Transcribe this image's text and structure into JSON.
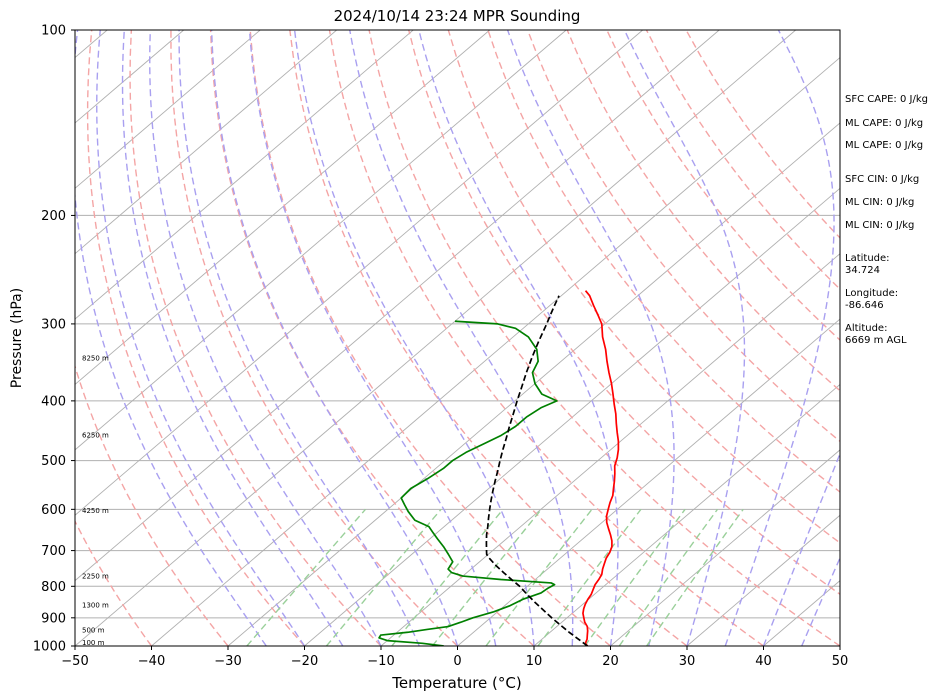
{
  "chart_data": {
    "type": "line",
    "title": "2024/10/14 23:24 MPR Sounding",
    "xlabel": "Temperature (°C)",
    "ylabel": "Pressure (hPa)",
    "xlim": [
      -50,
      50
    ],
    "ylim": [
      1000,
      100
    ],
    "y_scale": "log",
    "x_ticks": [
      -50,
      -40,
      -30,
      -20,
      -10,
      0,
      10,
      20,
      30,
      40,
      50
    ],
    "y_ticks": [
      100,
      200,
      300,
      400,
      500,
      600,
      700,
      800,
      900,
      1000
    ],
    "grid": "horizontal isobars plus skewed isotherms",
    "skew_factor": 1.17,
    "reference_lines": {
      "isotherm_step": 10,
      "dry_adiabat_theta_start_c": [
        -40,
        -30,
        -20,
        -10,
        0,
        10,
        20,
        30,
        40,
        50,
        60,
        70,
        80,
        90,
        100,
        110,
        120,
        130
      ],
      "dry_adiabat_color": "#f4a5a5",
      "moist_adiabat_start_c": [
        -25,
        -20,
        -15,
        -10,
        -5,
        0,
        5,
        10,
        15,
        20,
        25,
        30,
        35,
        40,
        45
      ],
      "moist_adiabat_color": "#a9a0f0",
      "mixing_ratio_g_per_kg": [
        0.4,
        1,
        2,
        3,
        5,
        8,
        12,
        16,
        20
      ],
      "mixing_ratio_color": "#9ad09a",
      "mixing_ratio_top_hpa": 600,
      "isotherm_color": "#b0b0b0"
    },
    "series": [
      {
        "role": "temperature",
        "color": "#ff0000",
        "points": [
          [
            1000,
            17.0
          ],
          [
            990,
            16.3
          ],
          [
            975,
            15.9
          ],
          [
            960,
            15.3
          ],
          [
            945,
            14.7
          ],
          [
            930,
            14.0
          ],
          [
            915,
            13.0
          ],
          [
            900,
            12.2
          ],
          [
            885,
            11.4
          ],
          [
            870,
            10.8
          ],
          [
            855,
            10.3
          ],
          [
            840,
            9.9
          ],
          [
            825,
            9.6
          ],
          [
            810,
            9.1
          ],
          [
            795,
            8.6
          ],
          [
            780,
            8.3
          ],
          [
            765,
            7.9
          ],
          [
            750,
            7.2
          ],
          [
            735,
            6.6
          ],
          [
            720,
            6.0
          ],
          [
            705,
            5.6
          ],
          [
            690,
            5.0
          ],
          [
            675,
            4.1
          ],
          [
            660,
            3.0
          ],
          [
            645,
            1.8
          ],
          [
            630,
            0.6
          ],
          [
            615,
            -0.4
          ],
          [
            600,
            -1.2
          ],
          [
            585,
            -2.0
          ],
          [
            570,
            -2.7
          ],
          [
            555,
            -3.7
          ],
          [
            540,
            -4.7
          ],
          [
            525,
            -5.8
          ],
          [
            510,
            -7.0
          ],
          [
            495,
            -7.9
          ],
          [
            480,
            -9.0
          ],
          [
            465,
            -10.3
          ],
          [
            450,
            -11.8
          ],
          [
            435,
            -13.3
          ],
          [
            420,
            -14.8
          ],
          [
            405,
            -16.5
          ],
          [
            390,
            -18.2
          ],
          [
            375,
            -20.0
          ],
          [
            360,
            -22.0
          ],
          [
            345,
            -24.0
          ],
          [
            330,
            -26.0
          ],
          [
            315,
            -28.3
          ],
          [
            300,
            -30.4
          ],
          [
            290,
            -32.3
          ],
          [
            280,
            -34.3
          ],
          [
            270,
            -36.3
          ],
          [
            265,
            -37.6
          ]
        ]
      },
      {
        "role": "dewpoint",
        "color": "#008000",
        "points": [
          [
            1000,
            -1.8
          ],
          [
            990,
            -5.0
          ],
          [
            980,
            -10.0
          ],
          [
            970,
            -11.5
          ],
          [
            960,
            -11.7
          ],
          [
            950,
            -8.6
          ],
          [
            940,
            -6.5
          ],
          [
            930,
            -4.2
          ],
          [
            915,
            -3.2
          ],
          [
            900,
            -2.3
          ],
          [
            880,
            -0.5
          ],
          [
            860,
            0.7
          ],
          [
            840,
            1.4
          ],
          [
            820,
            2.8
          ],
          [
            805,
            3.0
          ],
          [
            795,
            3.3
          ],
          [
            790,
            2.6
          ],
          [
            780,
            -4.5
          ],
          [
            770,
            -10.0
          ],
          [
            760,
            -12.0
          ],
          [
            750,
            -13.0
          ],
          [
            730,
            -13.5
          ],
          [
            710,
            -15.2
          ],
          [
            690,
            -17.0
          ],
          [
            670,
            -19.0
          ],
          [
            655,
            -20.5
          ],
          [
            640,
            -22.0
          ],
          [
            625,
            -24.8
          ],
          [
            605,
            -27.0
          ],
          [
            590,
            -28.5
          ],
          [
            575,
            -30.0
          ],
          [
            555,
            -30.2
          ],
          [
            535,
            -29.5
          ],
          [
            515,
            -29.0
          ],
          [
            500,
            -29.0
          ],
          [
            485,
            -28.5
          ],
          [
            470,
            -27.5
          ],
          [
            455,
            -26.5
          ],
          [
            440,
            -26.0
          ],
          [
            425,
            -26.0
          ],
          [
            410,
            -25.5
          ],
          [
            400,
            -24.5
          ],
          [
            390,
            -27.5
          ],
          [
            375,
            -30.0
          ],
          [
            360,
            -32.0
          ],
          [
            345,
            -33.0
          ],
          [
            330,
            -35.0
          ],
          [
            315,
            -38.0
          ],
          [
            305,
            -41.0
          ],
          [
            300,
            -44.0
          ],
          [
            297,
            -50.0
          ]
        ]
      },
      {
        "role": "parcel",
        "color": "#000000",
        "dashed": true,
        "points": [
          [
            1000,
            17.0
          ],
          [
            950,
            12.5
          ],
          [
            900,
            8.0
          ],
          [
            850,
            3.5
          ],
          [
            820,
            0.8
          ],
          [
            800,
            -1.0
          ],
          [
            780,
            -3.1
          ],
          [
            760,
            -5.2
          ],
          [
            740,
            -7.3
          ],
          [
            720,
            -9.3
          ],
          [
            710,
            -10.2
          ],
          [
            700,
            -10.8
          ],
          [
            680,
            -12.0
          ],
          [
            660,
            -13.2
          ],
          [
            640,
            -14.3
          ],
          [
            620,
            -15.5
          ],
          [
            600,
            -16.7
          ],
          [
            580,
            -17.9
          ],
          [
            560,
            -19.1
          ],
          [
            540,
            -20.3
          ],
          [
            520,
            -21.5
          ],
          [
            500,
            -22.8
          ],
          [
            480,
            -24.1
          ],
          [
            460,
            -25.4
          ],
          [
            440,
            -26.8
          ],
          [
            420,
            -28.2
          ],
          [
            400,
            -29.7
          ],
          [
            380,
            -31.2
          ],
          [
            360,
            -32.8
          ],
          [
            340,
            -34.4
          ],
          [
            320,
            -36.0
          ],
          [
            300,
            -37.6
          ],
          [
            290,
            -38.5
          ],
          [
            280,
            -39.4
          ],
          [
            270,
            -40.3
          ]
        ]
      }
    ],
    "height_labels": [
      {
        "pressure": 1000,
        "label": "100 m"
      },
      {
        "pressure": 955,
        "label": "500 m"
      },
      {
        "pressure": 870,
        "label": "1300 m"
      },
      {
        "pressure": 780,
        "label": "2250 m"
      },
      {
        "pressure": 610,
        "label": "4250 m"
      },
      {
        "pressure": 460,
        "label": "6250 m"
      },
      {
        "pressure": 345,
        "label": "8250 m"
      }
    ]
  },
  "stats": {
    "cape": [
      "SFC CAPE: 0 J/kg",
      "ML CAPE: 0 J/kg",
      "ML CAPE: 0 J/kg"
    ],
    "cin": [
      "SFC CIN: 0 J/kg",
      "ML CIN: 0 J/kg",
      "ML CIN: 0 J/kg"
    ],
    "location": [
      {
        "label": "Latitude:",
        "value": "34.724"
      },
      {
        "label": "Longitude:",
        "value": "-86.646"
      },
      {
        "label": "Altitude:",
        "value": "6669 m AGL"
      }
    ]
  }
}
